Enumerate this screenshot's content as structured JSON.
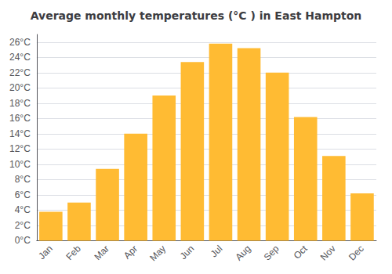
{
  "chart_data": {
    "type": "bar",
    "title": "Average monthly temperatures (°C ) in East Hampton",
    "categories": [
      "Jan",
      "Feb",
      "Mar",
      "Apr",
      "May",
      "Jun",
      "Jul",
      "Aug",
      "Sep",
      "Oct",
      "Nov",
      "Dec"
    ],
    "values": [
      3.8,
      5.0,
      9.4,
      14.0,
      19.0,
      23.4,
      25.8,
      25.2,
      22.0,
      16.2,
      11.1,
      6.2
    ],
    "color": "#FFBB33",
    "ylim": [
      0,
      27
    ],
    "yticks": [
      {
        "value": 0,
        "label": "0°C"
      },
      {
        "value": 2,
        "label": "2°C"
      },
      {
        "value": 4,
        "label": "4°C"
      },
      {
        "value": 6,
        "label": "6°C"
      },
      {
        "value": 8,
        "label": "8°C"
      },
      {
        "value": 10,
        "label": "10°C"
      },
      {
        "value": 12,
        "label": "12°C"
      },
      {
        "value": 14,
        "label": "14°C"
      },
      {
        "value": 16,
        "label": "16°C"
      },
      {
        "value": 18,
        "label": "18°C"
      },
      {
        "value": 20,
        "label": "20°C"
      },
      {
        "value": 22,
        "label": "22°C"
      },
      {
        "value": 24,
        "label": "24°C"
      },
      {
        "value": 26,
        "label": "26°C"
      }
    ],
    "grid": true
  }
}
